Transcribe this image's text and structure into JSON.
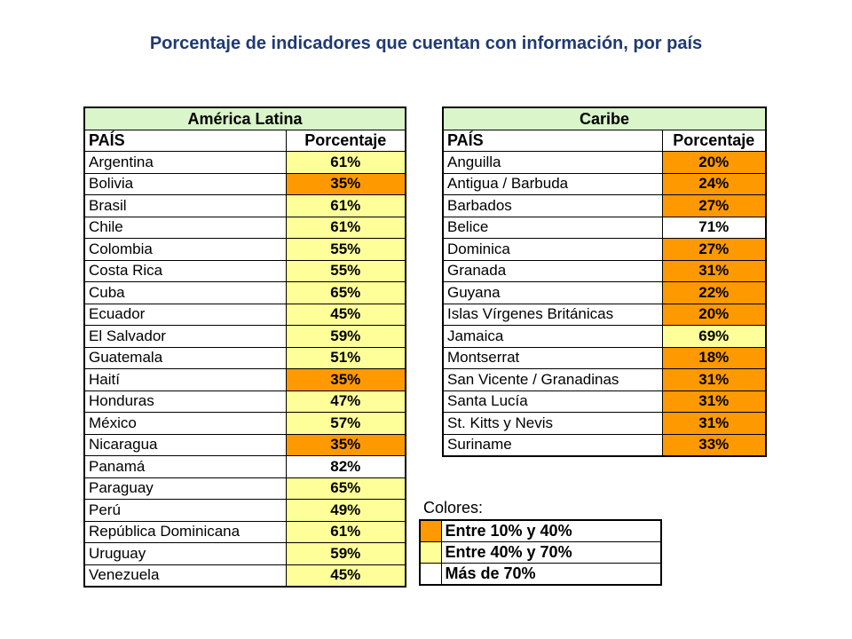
{
  "title": "Porcentaje de indicadores que cuentan con información, por país",
  "colors": {
    "low": "#ff9900",
    "mid": "#ffff99",
    "high": "#ffffff",
    "header": "#d9f5c9",
    "title": "#1f3a73"
  },
  "latam": {
    "heading": "América Latina",
    "col_country": "PAÍS",
    "col_percent": "Porcentaje",
    "rows": [
      {
        "country": "Argentina",
        "percent": "61%",
        "level": "mid"
      },
      {
        "country": "Bolivia",
        "percent": "35%",
        "level": "low"
      },
      {
        "country": "Brasil",
        "percent": "61%",
        "level": "mid"
      },
      {
        "country": "Chile",
        "percent": "61%",
        "level": "mid"
      },
      {
        "country": "Colombia",
        "percent": "55%",
        "level": "mid"
      },
      {
        "country": "Costa Rica",
        "percent": "55%",
        "level": "mid"
      },
      {
        "country": "Cuba",
        "percent": "65%",
        "level": "mid"
      },
      {
        "country": "Ecuador",
        "percent": "45%",
        "level": "mid"
      },
      {
        "country": "El Salvador",
        "percent": "59%",
        "level": "mid"
      },
      {
        "country": "Guatemala",
        "percent": "51%",
        "level": "mid"
      },
      {
        "country": "Haití",
        "percent": "35%",
        "level": "low"
      },
      {
        "country": "Honduras",
        "percent": "47%",
        "level": "mid"
      },
      {
        "country": "México",
        "percent": "57%",
        "level": "mid"
      },
      {
        "country": "Nicaragua",
        "percent": "35%",
        "level": "low"
      },
      {
        "country": "Panamá",
        "percent": "82%",
        "level": "high"
      },
      {
        "country": "Paraguay",
        "percent": "65%",
        "level": "mid"
      },
      {
        "country": "Perú",
        "percent": "49%",
        "level": "mid"
      },
      {
        "country": "República Dominicana",
        "percent": "61%",
        "level": "mid"
      },
      {
        "country": "Uruguay",
        "percent": "59%",
        "level": "mid"
      },
      {
        "country": "Venezuela",
        "percent": "45%",
        "level": "mid"
      }
    ]
  },
  "caribe": {
    "heading": "Caribe",
    "col_country": "PAÍS",
    "col_percent": "Porcentaje",
    "rows": [
      {
        "country": "Anguilla",
        "percent": "20%",
        "level": "low"
      },
      {
        "country": "Antigua / Barbuda",
        "percent": "24%",
        "level": "low"
      },
      {
        "country": "Barbados",
        "percent": "27%",
        "level": "low"
      },
      {
        "country": "Belice",
        "percent": "71%",
        "level": "high"
      },
      {
        "country": "Dominica",
        "percent": "27%",
        "level": "low"
      },
      {
        "country": "Granada",
        "percent": "31%",
        "level": "low"
      },
      {
        "country": "Guyana",
        "percent": "22%",
        "level": "low"
      },
      {
        "country": "Islas Vírgenes Británicas",
        "percent": "20%",
        "level": "low"
      },
      {
        "country": "Jamaica",
        "percent": "69%",
        "level": "mid"
      },
      {
        "country": "Montserrat",
        "percent": "18%",
        "level": "low"
      },
      {
        "country": "San Vicente / Granadinas",
        "percent": "31%",
        "level": "low"
      },
      {
        "country": "Santa Lucía",
        "percent": "31%",
        "level": "low"
      },
      {
        "country": "St. Kitts y Nevis",
        "percent": "31%",
        "level": "low"
      },
      {
        "country": "Suriname",
        "percent": "33%",
        "level": "low"
      }
    ]
  },
  "legend": {
    "title": "Colores:",
    "items": [
      {
        "label": "Entre 10% y 40%",
        "level": "low"
      },
      {
        "label": "Entre 40% y 70%",
        "level": "mid"
      },
      {
        "label": "Más de 70%",
        "level": "high"
      }
    ]
  }
}
